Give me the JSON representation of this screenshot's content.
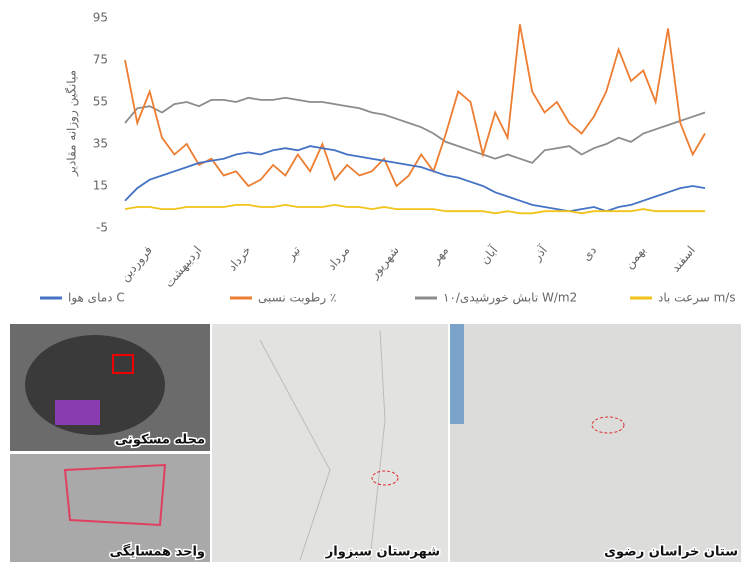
{
  "chart_data": {
    "type": "line",
    "y_label": "میانگین روزانه مقادیر",
    "categories": [
      "فروردین",
      null,
      null,
      null,
      "اردیبهشت",
      null,
      null,
      null,
      "خرداد",
      null,
      null,
      null,
      "تیر",
      null,
      null,
      null,
      "مرداد",
      null,
      null,
      null,
      "شهریور",
      null,
      null,
      null,
      "مهر",
      null,
      null,
      null,
      "آبان",
      null,
      null,
      null,
      "آذر",
      null,
      null,
      null,
      "دی",
      null,
      null,
      null,
      "بهمن",
      null,
      null,
      null,
      "اسفند",
      null,
      null,
      null
    ],
    "series": [
      {
        "name": "دمای هوا C",
        "color": "#4472c4",
        "values": [
          8,
          14,
          18,
          20,
          22,
          24,
          26,
          27,
          28,
          30,
          31,
          30,
          32,
          33,
          32,
          34,
          33,
          32,
          30,
          29,
          28,
          27,
          26,
          25,
          24,
          22,
          20,
          19,
          17,
          15,
          12,
          10,
          8,
          6,
          5,
          4,
          3,
          4,
          5,
          3,
          5,
          6,
          8,
          10,
          12,
          14,
          15,
          14
        ]
      },
      {
        "name": "رطوبت نسبی ٪",
        "color": "#ed7d31",
        "values": [
          75,
          45,
          60,
          38,
          30,
          35,
          25,
          28,
          20,
          22,
          15,
          18,
          25,
          20,
          30,
          22,
          35,
          18,
          25,
          20,
          22,
          28,
          15,
          20,
          30,
          22,
          40,
          60,
          55,
          30,
          50,
          38,
          92,
          60,
          50,
          55,
          45,
          40,
          48,
          60,
          80,
          65,
          70,
          55,
          90,
          45,
          30,
          40
        ]
      },
      {
        "name": "تابش خورشیدی/۱۰ W/m2",
        "color": "#8c8c8c",
        "values": [
          45,
          52,
          53,
          50,
          54,
          55,
          53,
          56,
          56,
          55,
          57,
          56,
          56,
          57,
          56,
          55,
          55,
          54,
          53,
          52,
          50,
          49,
          47,
          45,
          43,
          40,
          36,
          34,
          32,
          30,
          28,
          30,
          28,
          26,
          32,
          33,
          34,
          30,
          33,
          35,
          38,
          36,
          40,
          42,
          44,
          46,
          48,
          50
        ]
      },
      {
        "name": "سرعت باد m/s",
        "color": "#f2c318",
        "values": [
          4,
          5,
          5,
          4,
          4,
          5,
          5,
          5,
          5,
          6,
          6,
          5,
          5,
          6,
          5,
          5,
          5,
          6,
          5,
          5,
          4,
          5,
          4,
          4,
          4,
          4,
          3,
          3,
          3,
          3,
          2,
          3,
          2,
          2,
          3,
          3,
          3,
          2,
          3,
          3,
          3,
          3,
          4,
          3,
          3,
          3,
          3,
          3
        ]
      }
    ],
    "ylim": [
      -5,
      95
    ],
    "yticks": [
      95,
      75,
      55,
      35,
      15,
      -5
    ]
  },
  "maps": [
    {
      "label": "محله مسکونی"
    },
    {
      "label": "واحد همسایگی"
    },
    {
      "label": "شهرستان سبزوار"
    },
    {
      "label": "ستان خراسان رضوی"
    }
  ]
}
